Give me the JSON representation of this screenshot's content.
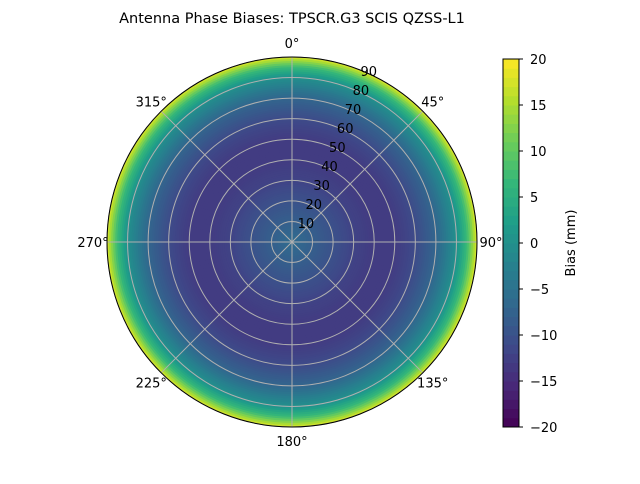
{
  "chart_data": {
    "type": "heatmap",
    "projection": "polar",
    "title": "Antenna Phase Biases: TPSCR.G3        SCIS QZSS-L1",
    "angle_ticks": [
      "0°",
      "45°",
      "90°",
      "135°",
      "180°",
      "225°",
      "270°",
      "315°"
    ],
    "radial_ticks": [
      "10",
      "20",
      "30",
      "40",
      "50",
      "60",
      "70",
      "80",
      "90"
    ],
    "rlim": [
      0,
      90
    ],
    "radial_profile": {
      "r": [
        0,
        10,
        20,
        30,
        40,
        50,
        60,
        70,
        80,
        85,
        90
      ],
      "bias": [
        -6,
        -8,
        -10,
        -12,
        -13,
        -13,
        -11,
        -7,
        0,
        7,
        18
      ]
    },
    "colorbar": {
      "label": "Bias (mm)",
      "range": [
        -20,
        20
      ],
      "ticks": [
        "20",
        "15",
        "10",
        "5",
        "0",
        "−5",
        "−10",
        "−15",
        "−20"
      ],
      "colormap": "viridis"
    },
    "grid": true
  }
}
